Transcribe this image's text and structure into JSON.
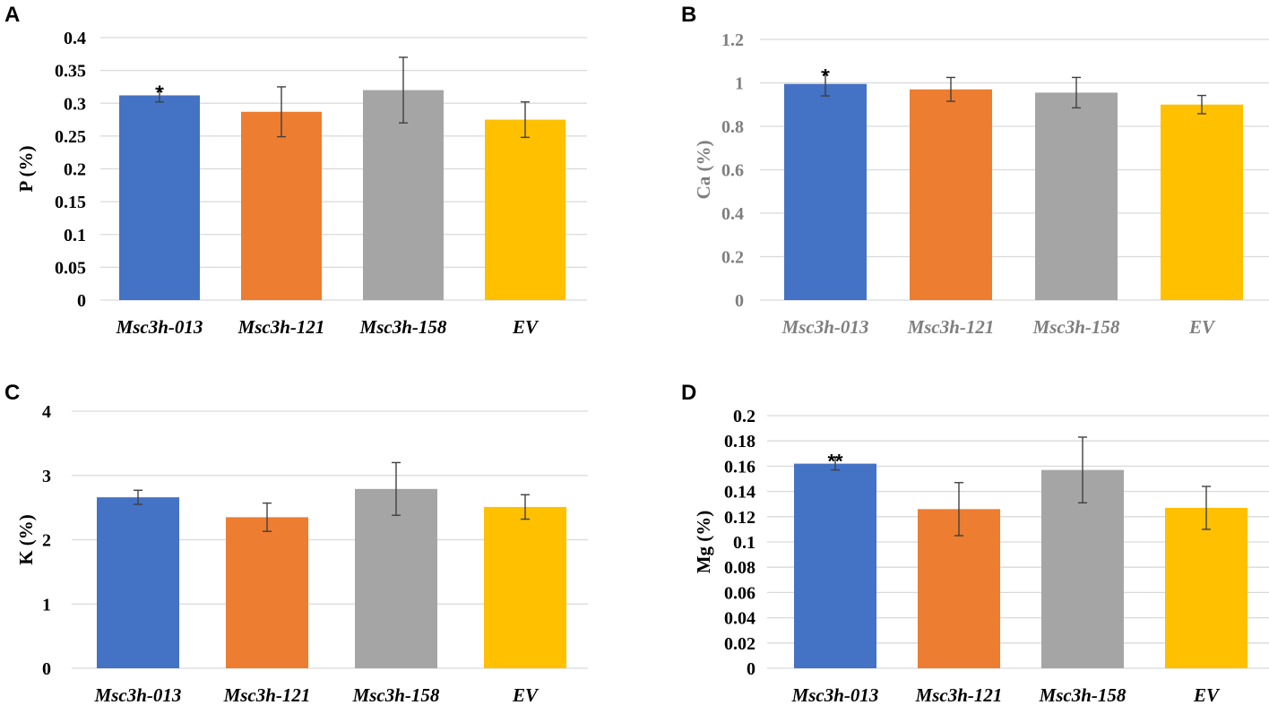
{
  "chart_data": [
    {
      "type": "bar",
      "panel": "A",
      "ylabel": "P (%)",
      "categories": [
        "Msc3h-013",
        "Msc3h-121",
        "Msc3h-158",
        "EV"
      ],
      "values": [
        0.312,
        0.287,
        0.32,
        0.275
      ],
      "errors": [
        0.01,
        0.038,
        0.05,
        0.027
      ],
      "significance": [
        "*",
        "",
        "",
        ""
      ],
      "ylim": [
        0,
        0.4
      ],
      "ytick_labels": [
        "0",
        "0.05",
        "0.1",
        "0.15",
        "0.2",
        "0.25",
        "0.3",
        "0.35",
        "0.4"
      ],
      "label_color": "#000000",
      "grid": true
    },
    {
      "type": "bar",
      "panel": "B",
      "ylabel": "Ca (%)",
      "categories": [
        "Msc3h-013",
        "Msc3h-121",
        "Msc3h-158",
        "EV"
      ],
      "values": [
        0.995,
        0.97,
        0.955,
        0.9
      ],
      "errors": [
        0.055,
        0.055,
        0.07,
        0.042
      ],
      "significance": [
        "*",
        "",
        "",
        ""
      ],
      "ylim": [
        0,
        1.2
      ],
      "ytick_labels": [
        "0",
        "0.2",
        "0.4",
        "0.6",
        "0.8",
        "1",
        "1.2"
      ],
      "label_color": "#7f7f7f",
      "grid": true
    },
    {
      "type": "bar",
      "panel": "C",
      "ylabel": "K (%)",
      "categories": [
        "Msc3h-013",
        "Msc3h-121",
        "Msc3h-158",
        "EV"
      ],
      "values": [
        2.66,
        2.35,
        2.79,
        2.51
      ],
      "errors": [
        0.11,
        0.22,
        0.41,
        0.19
      ],
      "significance": [
        "",
        "",
        "",
        ""
      ],
      "ylim": [
        0,
        4
      ],
      "ytick_labels": [
        "0",
        "1",
        "2",
        "3",
        "4"
      ],
      "label_color": "#000000",
      "grid": true
    },
    {
      "type": "bar",
      "panel": "D",
      "ylabel": "Mg (%)",
      "categories": [
        "Msc3h-013",
        "Msc3h-121",
        "Msc3h-158",
        "EV"
      ],
      "values": [
        0.162,
        0.126,
        0.157,
        0.127
      ],
      "errors": [
        0.005,
        0.021,
        0.026,
        0.017
      ],
      "significance": [
        "**",
        "",
        "",
        ""
      ],
      "ylim": [
        0,
        0.2
      ],
      "ytick_labels": [
        "0",
        "0.02",
        "0.04",
        "0.06",
        "0.08",
        "0.1",
        "0.12",
        "0.14",
        "0.16",
        "0.18",
        "0.2"
      ],
      "label_color": "#000000",
      "grid": true
    }
  ],
  "colors": {
    "bars": [
      "#4472c4",
      "#ed7d31",
      "#a5a5a5",
      "#ffc000"
    ],
    "grid": "#d9d9d9",
    "error_bar": "#404040"
  }
}
